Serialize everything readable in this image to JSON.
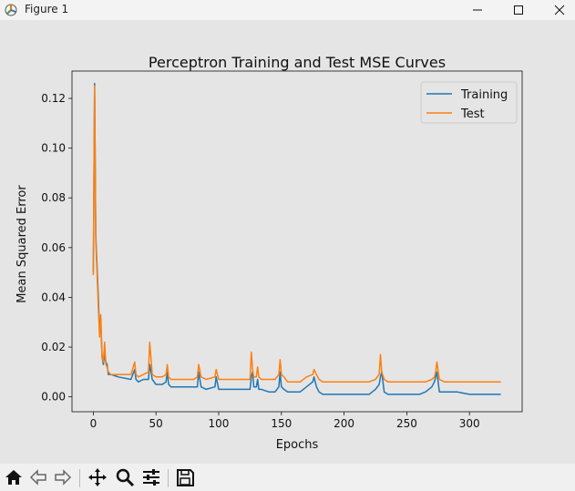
{
  "window": {
    "title": "Figure 1"
  },
  "chart_data": {
    "type": "line",
    "title": "Perceptron Training and Test MSE Curves",
    "xlabel": "Epochs",
    "ylabel": "Mean Squared Error",
    "xlim": [
      -17,
      342
    ],
    "ylim": [
      -0.006,
      0.131
    ],
    "xticks": [
      0,
      50,
      100,
      150,
      200,
      250,
      300
    ],
    "yticks": [
      0.0,
      0.02,
      0.04,
      0.06,
      0.08,
      0.1,
      0.12
    ],
    "ytick_labels": [
      "0.00",
      "0.02",
      "0.04",
      "0.06",
      "0.08",
      "0.10",
      "0.12"
    ],
    "legend": {
      "position": "top-right"
    },
    "series": [
      {
        "name": "Training",
        "color": "#1f77b4",
        "x": [
          0,
          1,
          2,
          4,
          5,
          6,
          7,
          8,
          9,
          10,
          11,
          12,
          14,
          20,
          30,
          33,
          34,
          36,
          40,
          44,
          45,
          47,
          50,
          55,
          58,
          59,
          60,
          62,
          70,
          80,
          83,
          84,
          86,
          90,
          97,
          98,
          100,
          105,
          110,
          120,
          125,
          126,
          127,
          128,
          130,
          131,
          132,
          134,
          140,
          145,
          148,
          149,
          150,
          152,
          155,
          160,
          165,
          170,
          175,
          176,
          178,
          180,
          183,
          190,
          200,
          210,
          220,
          225,
          228,
          229,
          230,
          232,
          235,
          240,
          250,
          260,
          265,
          270,
          272,
          273,
          274,
          276,
          280,
          290,
          300,
          325
        ],
        "y": [
          0.05,
          0.126,
          0.065,
          0.04,
          0.026,
          0.03,
          0.016,
          0.013,
          0.017,
          0.014,
          0.013,
          0.009,
          0.009,
          0.008,
          0.007,
          0.011,
          0.007,
          0.006,
          0.007,
          0.007,
          0.013,
          0.007,
          0.005,
          0.005,
          0.006,
          0.01,
          0.005,
          0.004,
          0.004,
          0.004,
          0.004,
          0.01,
          0.004,
          0.003,
          0.004,
          0.008,
          0.003,
          0.003,
          0.003,
          0.003,
          0.003,
          0.008,
          0.01,
          0.004,
          0.004,
          0.007,
          0.003,
          0.003,
          0.002,
          0.002,
          0.004,
          0.01,
          0.004,
          0.003,
          0.002,
          0.002,
          0.002,
          0.004,
          0.006,
          0.008,
          0.004,
          0.002,
          0.001,
          0.001,
          0.001,
          0.001,
          0.001,
          0.003,
          0.005,
          0.008,
          0.01,
          0.002,
          0.001,
          0.001,
          0.001,
          0.001,
          0.002,
          0.004,
          0.006,
          0.008,
          0.01,
          0.002,
          0.002,
          0.002,
          0.001,
          0.001
        ]
      },
      {
        "name": "Test",
        "color": "#ff7f0e",
        "x": [
          0,
          1,
          2,
          4,
          5,
          6,
          7,
          8,
          9,
          10,
          11,
          12,
          14,
          20,
          30,
          33,
          34,
          36,
          40,
          44,
          45,
          47,
          50,
          55,
          58,
          59,
          60,
          62,
          70,
          80,
          83,
          84,
          86,
          90,
          97,
          98,
          100,
          105,
          110,
          120,
          125,
          126,
          127,
          128,
          130,
          131,
          132,
          134,
          140,
          145,
          148,
          149,
          150,
          152,
          155,
          160,
          165,
          170,
          175,
          176,
          178,
          180,
          183,
          190,
          200,
          210,
          220,
          225,
          228,
          229,
          230,
          232,
          235,
          240,
          250,
          260,
          265,
          270,
          272,
          273,
          274,
          276,
          280,
          290,
          300,
          325
        ],
        "y": [
          0.049,
          0.125,
          0.063,
          0.036,
          0.024,
          0.033,
          0.016,
          0.014,
          0.022,
          0.013,
          0.012,
          0.01,
          0.009,
          0.009,
          0.009,
          0.014,
          0.009,
          0.008,
          0.009,
          0.01,
          0.022,
          0.009,
          0.008,
          0.008,
          0.009,
          0.013,
          0.008,
          0.007,
          0.007,
          0.007,
          0.008,
          0.013,
          0.008,
          0.007,
          0.008,
          0.011,
          0.007,
          0.007,
          0.007,
          0.007,
          0.007,
          0.018,
          0.011,
          0.008,
          0.008,
          0.012,
          0.008,
          0.007,
          0.007,
          0.007,
          0.009,
          0.015,
          0.009,
          0.008,
          0.006,
          0.006,
          0.006,
          0.008,
          0.009,
          0.011,
          0.009,
          0.007,
          0.006,
          0.006,
          0.006,
          0.006,
          0.006,
          0.007,
          0.009,
          0.017,
          0.01,
          0.007,
          0.006,
          0.006,
          0.006,
          0.006,
          0.006,
          0.007,
          0.008,
          0.01,
          0.014,
          0.007,
          0.006,
          0.006,
          0.006,
          0.006
        ]
      }
    ]
  },
  "toolbar": {
    "icons": [
      "home-icon",
      "back-icon",
      "forward-icon",
      "pan-icon",
      "zoom-icon",
      "configure-icon",
      "save-icon"
    ]
  }
}
